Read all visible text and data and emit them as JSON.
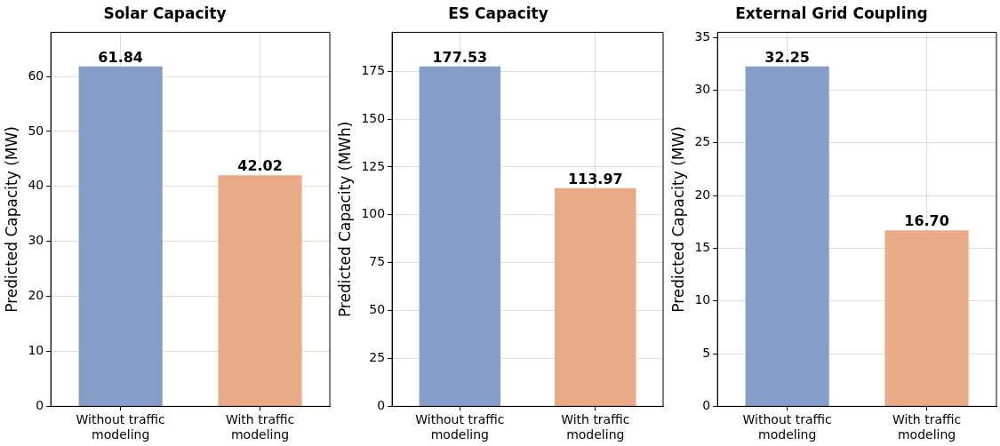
{
  "chart_data": [
    {
      "type": "bar",
      "title": "Solar Capacity",
      "ylabel": "Predicted Capacity (MW)",
      "categories": [
        "Without traffic modeling",
        "With traffic modeling"
      ],
      "values": [
        61.84,
        42.02
      ],
      "colors": [
        "#849ec9",
        "#e8aa87"
      ],
      "value_labels": [
        "61.84",
        "42.02"
      ],
      "ylim": [
        0,
        68.02
      ],
      "yticks": [
        0,
        10,
        20,
        30,
        40,
        50,
        60
      ],
      "grid": true
    },
    {
      "type": "bar",
      "title": "ES Capacity",
      "ylabel": "Predicted Capacity (MWh)",
      "categories": [
        "Without traffic modeling",
        "With traffic modeling"
      ],
      "values": [
        177.53,
        113.97
      ],
      "colors": [
        "#849ec9",
        "#e8aa87"
      ],
      "value_labels": [
        "177.53",
        "113.97"
      ],
      "ylim": [
        0,
        195.3
      ],
      "yticks": [
        0,
        25,
        50,
        75,
        100,
        125,
        150,
        175
      ],
      "grid": true
    },
    {
      "type": "bar",
      "title": "External Grid Coupling",
      "ylabel": "Predicted Capacity (MW)",
      "categories": [
        "Without traffic modeling",
        "With traffic modeling"
      ],
      "values": [
        32.25,
        16.7
      ],
      "colors": [
        "#849ec9",
        "#e8aa87"
      ],
      "value_labels": [
        "32.25",
        "16.70"
      ],
      "ylim": [
        0,
        35.48
      ],
      "yticks": [
        0,
        5,
        10,
        15,
        20,
        25,
        30,
        35
      ],
      "grid": true
    }
  ]
}
